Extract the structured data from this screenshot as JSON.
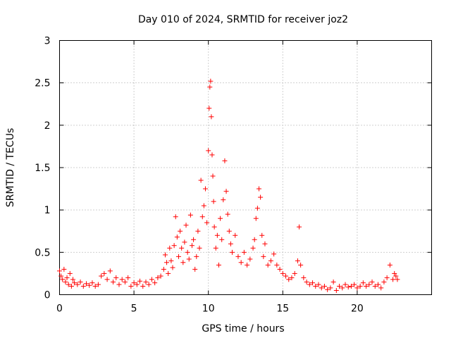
{
  "chart_data": {
    "type": "scatter",
    "title": "Day 010 of 2024, SRMTID for receiver joz2",
    "xlabel": "GPS time / hours",
    "ylabel": "SRMTID / TECUs",
    "xlim": [
      0,
      25
    ],
    "ylim": [
      0,
      3
    ],
    "xticks": [
      0,
      5,
      10,
      15,
      20
    ],
    "xtick_labels": [
      "0",
      "5",
      "10",
      "15",
      "20"
    ],
    "yticks": [
      0,
      0.5,
      1,
      1.5,
      2,
      2.5,
      3
    ],
    "ytick_labels": [
      "0",
      "0.5",
      "1",
      "1.5",
      "2",
      "2.5",
      "3"
    ],
    "grid": true,
    "marker": "+",
    "color": "#ff0000",
    "series": [
      {
        "name": "SRMTID",
        "points": [
          [
            0.0,
            0.28
          ],
          [
            0.1,
            0.22
          ],
          [
            0.2,
            0.18
          ],
          [
            0.3,
            0.3
          ],
          [
            0.4,
            0.15
          ],
          [
            0.5,
            0.2
          ],
          [
            0.6,
            0.12
          ],
          [
            0.7,
            0.25
          ],
          [
            0.8,
            0.1
          ],
          [
            0.9,
            0.18
          ],
          [
            1.0,
            0.14
          ],
          [
            1.2,
            0.12
          ],
          [
            1.4,
            0.15
          ],
          [
            1.6,
            0.1
          ],
          [
            1.8,
            0.13
          ],
          [
            2.0,
            0.11
          ],
          [
            2.2,
            0.14
          ],
          [
            2.4,
            0.1
          ],
          [
            2.6,
            0.12
          ],
          [
            2.8,
            0.22
          ],
          [
            3.0,
            0.25
          ],
          [
            3.2,
            0.18
          ],
          [
            3.4,
            0.28
          ],
          [
            3.6,
            0.15
          ],
          [
            3.8,
            0.2
          ],
          [
            4.0,
            0.12
          ],
          [
            4.2,
            0.18
          ],
          [
            4.4,
            0.15
          ],
          [
            4.6,
            0.2
          ],
          [
            4.8,
            0.1
          ],
          [
            5.0,
            0.14
          ],
          [
            5.2,
            0.12
          ],
          [
            5.4,
            0.16
          ],
          [
            5.6,
            0.1
          ],
          [
            5.8,
            0.15
          ],
          [
            6.0,
            0.12
          ],
          [
            6.2,
            0.18
          ],
          [
            6.4,
            0.14
          ],
          [
            6.6,
            0.2
          ],
          [
            6.8,
            0.22
          ],
          [
            7.0,
            0.3
          ],
          [
            7.1,
            0.47
          ],
          [
            7.2,
            0.38
          ],
          [
            7.3,
            0.25
          ],
          [
            7.4,
            0.55
          ],
          [
            7.5,
            0.4
          ],
          [
            7.6,
            0.32
          ],
          [
            7.7,
            0.58
          ],
          [
            7.8,
            0.92
          ],
          [
            7.9,
            0.68
          ],
          [
            8.0,
            0.45
          ],
          [
            8.1,
            0.75
          ],
          [
            8.2,
            0.55
          ],
          [
            8.3,
            0.38
          ],
          [
            8.4,
            0.62
          ],
          [
            8.5,
            0.82
          ],
          [
            8.6,
            0.5
          ],
          [
            8.7,
            0.42
          ],
          [
            8.8,
            0.94
          ],
          [
            8.9,
            0.58
          ],
          [
            9.0,
            0.65
          ],
          [
            9.1,
            0.3
          ],
          [
            9.2,
            0.45
          ],
          [
            9.3,
            0.75
          ],
          [
            9.4,
            0.55
          ],
          [
            9.5,
            1.35
          ],
          [
            9.6,
            0.92
          ],
          [
            9.7,
            1.05
          ],
          [
            9.8,
            1.25
          ],
          [
            9.9,
            0.85
          ],
          [
            10.0,
            1.7
          ],
          [
            10.05,
            2.2
          ],
          [
            10.1,
            2.45
          ],
          [
            10.15,
            2.52
          ],
          [
            10.2,
            2.1
          ],
          [
            10.25,
            1.65
          ],
          [
            10.3,
            1.4
          ],
          [
            10.35,
            1.1
          ],
          [
            10.4,
            0.8
          ],
          [
            10.5,
            0.55
          ],
          [
            10.6,
            0.7
          ],
          [
            10.7,
            0.35
          ],
          [
            10.8,
            0.9
          ],
          [
            10.9,
            0.65
          ],
          [
            11.0,
            1.12
          ],
          [
            11.1,
            1.58
          ],
          [
            11.2,
            1.22
          ],
          [
            11.3,
            0.95
          ],
          [
            11.4,
            0.75
          ],
          [
            11.5,
            0.6
          ],
          [
            11.6,
            0.5
          ],
          [
            11.8,
            0.7
          ],
          [
            12.0,
            0.45
          ],
          [
            12.2,
            0.38
          ],
          [
            12.4,
            0.5
          ],
          [
            12.6,
            0.35
          ],
          [
            12.8,
            0.42
          ],
          [
            13.0,
            0.55
          ],
          [
            13.1,
            0.65
          ],
          [
            13.2,
            0.9
          ],
          [
            13.3,
            1.02
          ],
          [
            13.4,
            1.25
          ],
          [
            13.5,
            1.15
          ],
          [
            13.6,
            0.7
          ],
          [
            13.7,
            0.45
          ],
          [
            13.8,
            0.6
          ],
          [
            14.0,
            0.35
          ],
          [
            14.2,
            0.4
          ],
          [
            14.4,
            0.48
          ],
          [
            14.6,
            0.35
          ],
          [
            14.8,
            0.3
          ],
          [
            15.0,
            0.25
          ],
          [
            15.2,
            0.22
          ],
          [
            15.4,
            0.18
          ],
          [
            15.6,
            0.2
          ],
          [
            15.8,
            0.25
          ],
          [
            16.0,
            0.4
          ],
          [
            16.1,
            0.8
          ],
          [
            16.2,
            0.35
          ],
          [
            16.4,
            0.2
          ],
          [
            16.6,
            0.15
          ],
          [
            16.8,
            0.12
          ],
          [
            17.0,
            0.14
          ],
          [
            17.2,
            0.1
          ],
          [
            17.4,
            0.12
          ],
          [
            17.6,
            0.08
          ],
          [
            17.8,
            0.1
          ],
          [
            18.0,
            0.06
          ],
          [
            18.2,
            0.08
          ],
          [
            18.4,
            0.15
          ],
          [
            18.6,
            0.05
          ],
          [
            18.8,
            0.1
          ],
          [
            19.0,
            0.08
          ],
          [
            19.2,
            0.12
          ],
          [
            19.4,
            0.09
          ],
          [
            19.6,
            0.1
          ],
          [
            19.8,
            0.12
          ],
          [
            20.0,
            0.08
          ],
          [
            20.2,
            0.1
          ],
          [
            20.4,
            0.14
          ],
          [
            20.6,
            0.1
          ],
          [
            20.8,
            0.12
          ],
          [
            21.0,
            0.15
          ],
          [
            21.2,
            0.1
          ],
          [
            21.4,
            0.12
          ],
          [
            21.6,
            0.08
          ],
          [
            21.8,
            0.15
          ],
          [
            22.0,
            0.2
          ],
          [
            22.2,
            0.35
          ],
          [
            22.4,
            0.18
          ],
          [
            22.5,
            0.25
          ],
          [
            22.6,
            0.22
          ],
          [
            22.7,
            0.18
          ]
        ]
      }
    ]
  }
}
